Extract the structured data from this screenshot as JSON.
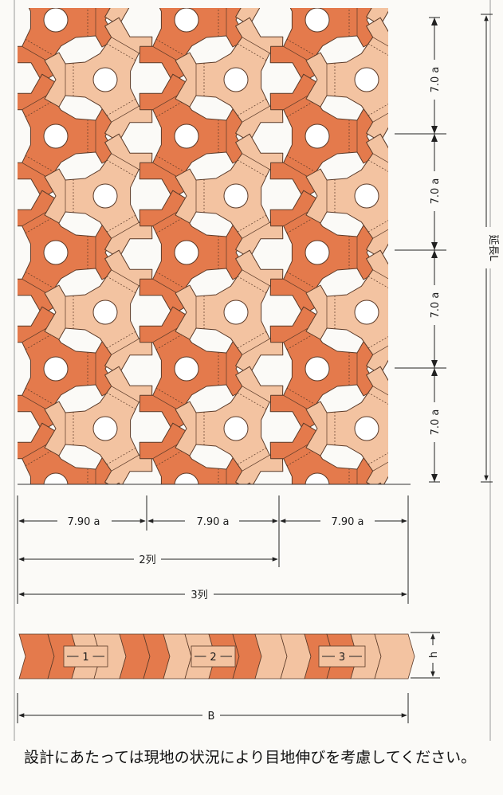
{
  "diagram": {
    "colors": {
      "dark_block": "#e47a4c",
      "light_block": "#f3c3a1",
      "outline": "#5a3a28",
      "dimension_line": "#222222",
      "background": "#fbfaf7"
    },
    "vertical_dims": [
      "7.0 a",
      "7.0 a",
      "7.0 a",
      "7.0 a"
    ],
    "total_length_label": "延長L",
    "column_dims": [
      "7.90 a",
      "7.90 a",
      "7.90 a"
    ],
    "span_2_label": "2列",
    "span_3_label": "3列",
    "section_numbers": [
      "1",
      "2",
      "3"
    ],
    "height_label": "h",
    "width_label": "B"
  },
  "note": "設計にあたっては現地の状況により目地伸びを考慮してください。"
}
